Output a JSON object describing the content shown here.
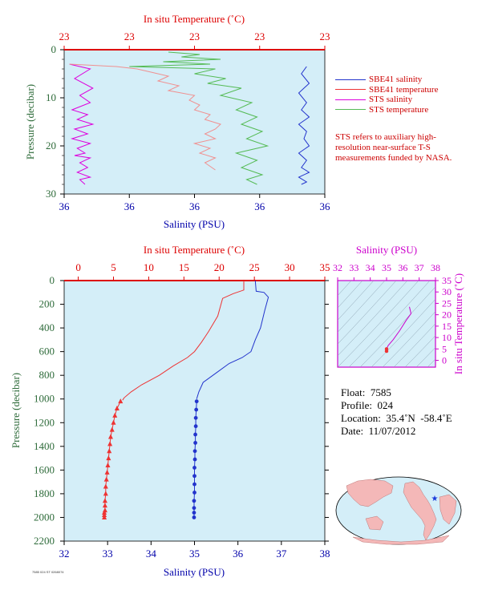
{
  "colors": {
    "plot_bg": "#d4eef8",
    "axis_red": "#dd0000",
    "axis_blue": "#0000aa",
    "axis_green": "#2e6b3a",
    "axis_magenta": "#cc00cc",
    "sbe41_salinity": "#2233cc",
    "sbe41_temperature": "#ee3333",
    "sts_salinity": "#dd00dd",
    "sts_temperature": "#55bb55",
    "sts_temperature_pink": "#f09090"
  },
  "legend": {
    "items": [
      {
        "label": "SBE41 salinity",
        "color": "#2233cc"
      },
      {
        "label": "SBE41 temperature",
        "color": "#ee3333"
      },
      {
        "label": "STS salinity",
        "color": "#dd00dd"
      },
      {
        "label": "STS temperature",
        "color": "#55bb55"
      }
    ],
    "note": "STS refers to auxiliary high-resolution near-surface T-S measurements funded by NASA."
  },
  "info": {
    "float_label": "Float:",
    "float_value": "7585",
    "profile_label": "Profile:",
    "profile_value": "024",
    "location_label": "Location:",
    "location_value": "35.4˚N  -58.4˚E",
    "date_label": "Date:",
    "date_value": "11/07/2012"
  },
  "footer": {
    "text": "7585 024 ST 0268074"
  },
  "chart_data": [
    {
      "type": "line",
      "title_top": "In situ Temperature (˚C)",
      "xlabel": "Salinity (PSU)",
      "ylabel": "Pressure (decibar)",
      "top_tick_labels": [
        "23",
        "23",
        "23",
        "23",
        "23"
      ],
      "bottom_tick_labels": [
        "36",
        "36",
        "36",
        "36",
        "36"
      ],
      "y_ticks": [
        "0",
        "10",
        "20",
        "30"
      ],
      "ylim": [
        0,
        30
      ],
      "series": [
        {
          "name": "STS salinity",
          "axis": "salinity",
          "x_frac": [
            0.02,
            0.1,
            0.04,
            0.11,
            0.06,
            0.1,
            0.03,
            0.09,
            0.05,
            0.11,
            0.04,
            0.09,
            0.03,
            0.1,
            0.05,
            0.08,
            0.04,
            0.1,
            0.06,
            0.09,
            0.05,
            0.1,
            0.06,
            0.08
          ],
          "y": [
            3.0,
            4.0,
            6.0,
            8.0,
            9.5,
            11.0,
            12.5,
            13.5,
            14.5,
            15.5,
            16.5,
            17.5,
            18.5,
            19.5,
            20.5,
            21.5,
            22.0,
            22.5,
            23.5,
            24.5,
            25.5,
            26.5,
            27.0,
            28.0
          ]
        },
        {
          "name": "SBE41 salinity",
          "axis": "salinity",
          "x_frac": [
            0.93,
            0.91,
            0.94,
            0.9,
            0.93,
            0.91,
            0.94,
            0.9,
            0.93,
            0.92,
            0.94,
            0.9,
            0.93,
            0.91,
            0.94,
            0.9,
            0.93,
            0.91
          ],
          "y": [
            3.5,
            5.0,
            7.0,
            9.0,
            11.0,
            12.5,
            14.0,
            15.5,
            17.0,
            18.5,
            20.0,
            21.5,
            23.0,
            24.5,
            25.5,
            26.5,
            27.5,
            28.0
          ]
        },
        {
          "name": "STS temperature",
          "axis": "temperature",
          "x_frac": [
            0.4,
            0.52,
            0.45,
            0.6,
            0.38,
            0.56,
            0.25,
            0.58,
            0.5,
            0.62,
            0.55,
            0.68,
            0.6,
            0.72,
            0.66,
            0.74,
            0.68,
            0.76,
            0.7,
            0.78,
            0.66,
            0.74,
            0.68,
            0.76,
            0.7,
            0.74
          ],
          "y": [
            0.5,
            1.0,
            1.5,
            2.0,
            2.5,
            3.0,
            3.5,
            4.0,
            5.0,
            6.0,
            7.0,
            8.0,
            9.5,
            11.0,
            12.5,
            14.0,
            15.5,
            17.0,
            18.5,
            20.0,
            21.5,
            23.0,
            24.5,
            26.0,
            27.0,
            28.0
          ]
        },
        {
          "name": "SBE41 temperature",
          "axis": "temperature",
          "x_frac": [
            0.02,
            0.2,
            0.28,
            0.32,
            0.4,
            0.36,
            0.44,
            0.4,
            0.5,
            0.48,
            0.52,
            0.5,
            0.56,
            0.54,
            0.6,
            0.58,
            0.54,
            0.58,
            0.5,
            0.56,
            0.52,
            0.58,
            0.54,
            0.58
          ],
          "y": [
            3.0,
            3.5,
            4.0,
            4.5,
            5.5,
            6.5,
            7.5,
            8.5,
            9.5,
            10.5,
            11.5,
            12.5,
            13.5,
            14.5,
            15.5,
            16.5,
            17.5,
            18.5,
            19.5,
            20.5,
            21.5,
            22.5,
            23.5,
            25.0
          ]
        }
      ]
    },
    {
      "type": "line",
      "title_top": "In situ Temperature (˚C)",
      "xlabel": "Salinity (PSU)",
      "ylabel": "Pressure (decibar)",
      "temperature_ticks": [
        0,
        5,
        10,
        15,
        20,
        25,
        30,
        35
      ],
      "salinity_ticks": [
        32,
        33,
        34,
        35,
        36,
        37,
        38
      ],
      "pressure_ticks": [
        0,
        200,
        400,
        600,
        800,
        1000,
        1200,
        1400,
        1600,
        1800,
        2000,
        2200
      ],
      "xlim_temperature": [
        -2,
        35
      ],
      "xlim_salinity": [
        32,
        38
      ],
      "ylim": [
        0,
        2200
      ],
      "series": [
        {
          "name": "Temperature",
          "axis": "temperature",
          "x": [
            23.5,
            23.5,
            22.0,
            20.5,
            19.8,
            18.5,
            17.5,
            16.5,
            15.5,
            13.5,
            11.5,
            9.0,
            7.5,
            6.5,
            6.3
          ],
          "y": [
            0,
            80,
            110,
            150,
            300,
            430,
            520,
            600,
            650,
            720,
            800,
            880,
            940,
            990,
            1010
          ]
        },
        {
          "name": "Temperature samples",
          "axis": "temperature",
          "markers": "triangle",
          "x": [
            6.0,
            5.5,
            5.2,
            5.0,
            4.8,
            4.6,
            4.5,
            4.4,
            4.3,
            4.2,
            4.1,
            4.0,
            3.9,
            3.9,
            3.8,
            3.8,
            3.8,
            3.7,
            3.7,
            3.7
          ],
          "y": [
            1020,
            1080,
            1140,
            1200,
            1260,
            1320,
            1380,
            1440,
            1500,
            1560,
            1620,
            1680,
            1740,
            1800,
            1860,
            1900,
            1940,
            1960,
            1980,
            2000
          ]
        },
        {
          "name": "Salinity",
          "axis": "salinity",
          "x": [
            36.4,
            36.42,
            36.6,
            36.7,
            36.62,
            36.52,
            36.4,
            36.3,
            36.1,
            35.8,
            35.5,
            35.2,
            35.1,
            35.05
          ],
          "y": [
            0,
            90,
            100,
            140,
            250,
            400,
            500,
            600,
            650,
            700,
            780,
            860,
            940,
            1000
          ]
        },
        {
          "name": "Salinity samples",
          "axis": "salinity",
          "markers": "circle",
          "x": [
            35.05,
            35.04,
            35.03,
            35.03,
            35.02,
            35.02,
            35.01,
            35.01,
            35.0,
            35.0,
            35.0,
            35.0,
            34.99,
            34.99,
            34.99,
            34.99
          ],
          "y": [
            1020,
            1090,
            1160,
            1230,
            1300,
            1370,
            1440,
            1510,
            1580,
            1650,
            1720,
            1790,
            1860,
            1920,
            1960,
            2000
          ]
        }
      ]
    },
    {
      "type": "scatter",
      "title_top": "Salinity (PSU)",
      "ylabel": "In situ Temperature (˚C)",
      "salinity_ticks": [
        32,
        33,
        34,
        35,
        36,
        37,
        38
      ],
      "temperature_ticks": [
        0,
        5,
        10,
        15,
        20,
        25,
        30,
        35
      ],
      "xlim": [
        32,
        38
      ],
      "ylim": [
        -3,
        35
      ],
      "series": [
        {
          "name": "T-S",
          "x": [
            36.4,
            36.5,
            36.2,
            35.8,
            35.4,
            35.1,
            35.0,
            35.0
          ],
          "y": [
            23.5,
            20.5,
            17.5,
            13.0,
            9.0,
            6.5,
            5.0,
            4.0
          ]
        }
      ]
    }
  ]
}
